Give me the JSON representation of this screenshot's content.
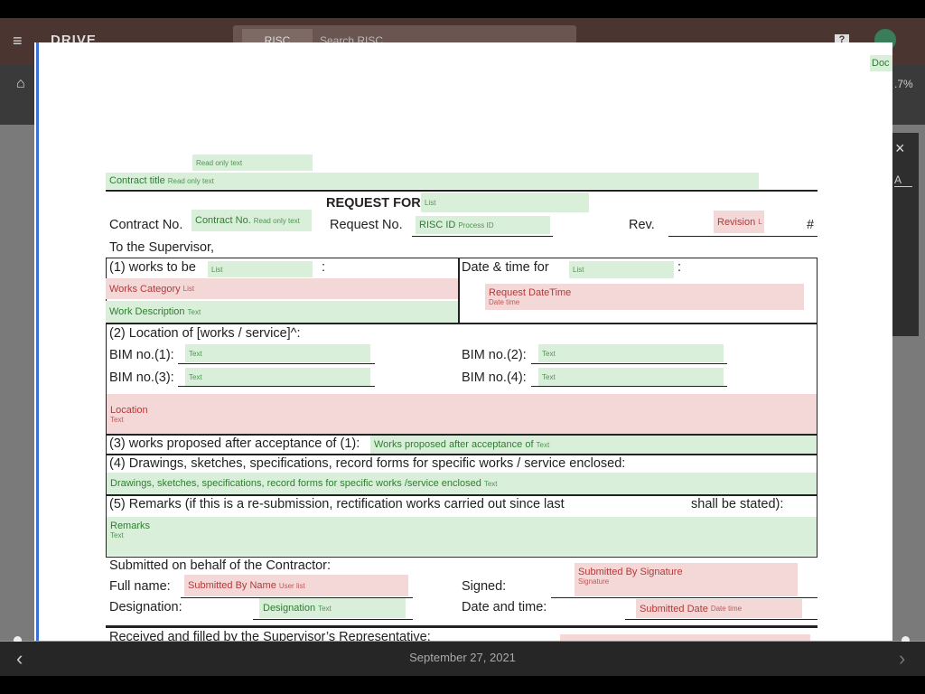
{
  "app": {
    "logo": "DRIVE",
    "search_tab": "RISC",
    "search_placeholder": "Search RISC",
    "help": "?",
    "progress": ".7%",
    "doc_tag": "Doc",
    "panel_tab": "A",
    "close": "×"
  },
  "form": {
    "labels": [
      "REQUEST FOR",
      "Contract No.",
      "Request No.",
      "Rev.",
      "#",
      "To the Supervisor,",
      "(1) works to be",
      ":",
      "Date & time for",
      ":",
      "(2) Location of [works / service]^:",
      "BIM no.(1):",
      "BIM no.(2):",
      "BIM no.(3):",
      "BIM no.(4):",
      "(3) works proposed after acceptance of (1):",
      "(4) Drawings, sketches, specifications, record forms for specific works / service enclosed:",
      "(5) Remarks (if this is a re-submission, rectification works carried out since last",
      "shall be stated):",
      "Submitted on behalf of the Contractor:",
      "Full name:",
      "Signed:",
      "Designation:",
      "Date and time:",
      "Received and filled by the Supervisor’s Representative:"
    ],
    "fields": [
      {
        "hint": "Read only text"
      },
      {
        "label": "Contract title",
        "hint": "Read only text"
      },
      {
        "hint": "List"
      },
      {
        "label": "Contract No.",
        "hint": "Read only text"
      },
      {
        "label": "RISC ID",
        "hint": "Process ID"
      },
      {
        "label": "Revision",
        "hint": "L"
      },
      {
        "hint": "List"
      },
      {
        "hint": "List"
      },
      {
        "label": "Works Category",
        "hint": "List"
      },
      {
        "label": "Work Description",
        "hint": "Text"
      },
      {
        "label": "Request DateTime",
        "hint": "Date time"
      },
      {
        "hint": "Text"
      },
      {
        "hint": "Text"
      },
      {
        "hint": "Text"
      },
      {
        "hint": "Text"
      },
      {
        "label": "Location",
        "hint": "Text"
      },
      {
        "label": "Works proposed after acceptance of",
        "hint": "Text"
      },
      {
        "label": "Drawings, sketches, specifications, record forms for specific works /service enclosed",
        "hint": "Text"
      },
      {
        "label": "Remarks",
        "hint": "Text"
      },
      {
        "label": "Submitted By Name",
        "hint": "User list"
      },
      {
        "label": "Submitted By Signature",
        "hint": "Signature"
      },
      {
        "label": "Designation",
        "hint": "Text"
      },
      {
        "label": "Submitted Date",
        "hint": "Date time"
      }
    ]
  },
  "footer": {
    "date": "September 27, 2021",
    "prev": "‹",
    "next": "›"
  }
}
